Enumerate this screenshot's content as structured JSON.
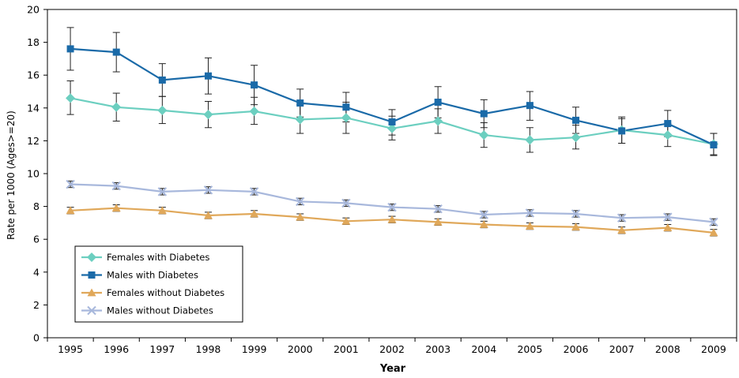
{
  "chart_data": {
    "type": "line",
    "title": "",
    "xlabel": "Year",
    "ylabel": "Rate per 1000 (Ages>=20)",
    "ylim": [
      0,
      20
    ],
    "yticks": [
      0,
      2,
      4,
      6,
      8,
      10,
      12,
      14,
      16,
      18,
      20
    ],
    "categories": [
      "1995",
      "1996",
      "1997",
      "1998",
      "1999",
      "2000",
      "2001",
      "2002",
      "2003",
      "2004",
      "2005",
      "2006",
      "2007",
      "2008",
      "2009"
    ],
    "grid": false,
    "legend_position": "bottom-left",
    "series": [
      {
        "name": "Females with Diabetes",
        "color": "#6ccfc0",
        "marker": "diamond",
        "values": [
          14.6,
          14.05,
          13.85,
          13.6,
          13.8,
          13.3,
          13.4,
          12.75,
          13.2,
          12.35,
          12.05,
          12.2,
          12.65,
          12.35,
          11.8
        ],
        "err_low": [
          13.6,
          13.2,
          13.05,
          12.8,
          13.0,
          12.45,
          12.45,
          12.05,
          12.45,
          11.6,
          11.3,
          11.5,
          11.85,
          11.65,
          11.15
        ],
        "err_high": [
          15.65,
          14.9,
          14.7,
          14.4,
          14.65,
          14.2,
          14.35,
          13.5,
          13.95,
          13.1,
          12.8,
          12.95,
          13.45,
          13.05,
          12.45
        ]
      },
      {
        "name": "Males with Diabetes",
        "color": "#1a6aa8",
        "marker": "square",
        "values": [
          17.6,
          17.4,
          15.7,
          15.95,
          15.4,
          14.3,
          14.05,
          13.15,
          14.35,
          13.65,
          14.15,
          13.25,
          12.6,
          13.05,
          11.75
        ],
        "err_low": [
          16.3,
          16.2,
          14.7,
          14.85,
          14.2,
          13.45,
          13.15,
          12.35,
          13.4,
          12.8,
          13.25,
          12.45,
          11.85,
          12.25,
          11.1
        ],
        "err_high": [
          18.9,
          18.6,
          16.7,
          17.05,
          16.6,
          15.15,
          14.95,
          13.9,
          15.3,
          14.5,
          15.0,
          14.05,
          13.35,
          13.85,
          12.45
        ]
      },
      {
        "name": "Females without Diabetes",
        "color": "#e0a85a",
        "marker": "triangle",
        "values": [
          7.75,
          7.9,
          7.75,
          7.45,
          7.55,
          7.35,
          7.1,
          7.2,
          7.05,
          6.9,
          6.8,
          6.75,
          6.55,
          6.7,
          6.4
        ],
        "err_low": [
          7.55,
          7.7,
          7.55,
          7.25,
          7.35,
          7.15,
          6.9,
          7.0,
          6.85,
          6.7,
          6.6,
          6.55,
          6.35,
          6.5,
          6.2
        ],
        "err_high": [
          7.95,
          8.1,
          7.95,
          7.65,
          7.75,
          7.55,
          7.3,
          7.4,
          7.25,
          7.1,
          7.0,
          6.95,
          6.75,
          6.9,
          6.6
        ]
      },
      {
        "name": "Males without Diabetes",
        "color": "#a8b8dc",
        "marker": "x",
        "values": [
          9.35,
          9.25,
          8.9,
          9.0,
          8.9,
          8.3,
          8.2,
          7.95,
          7.85,
          7.5,
          7.6,
          7.55,
          7.3,
          7.35,
          7.05
        ],
        "err_low": [
          9.15,
          9.05,
          8.7,
          8.8,
          8.7,
          8.1,
          8.0,
          7.75,
          7.65,
          7.3,
          7.4,
          7.35,
          7.1,
          7.15,
          6.85
        ],
        "err_high": [
          9.55,
          9.45,
          9.1,
          9.2,
          9.1,
          8.5,
          8.4,
          8.15,
          8.05,
          7.7,
          7.8,
          7.75,
          7.5,
          7.55,
          7.25
        ]
      }
    ]
  }
}
